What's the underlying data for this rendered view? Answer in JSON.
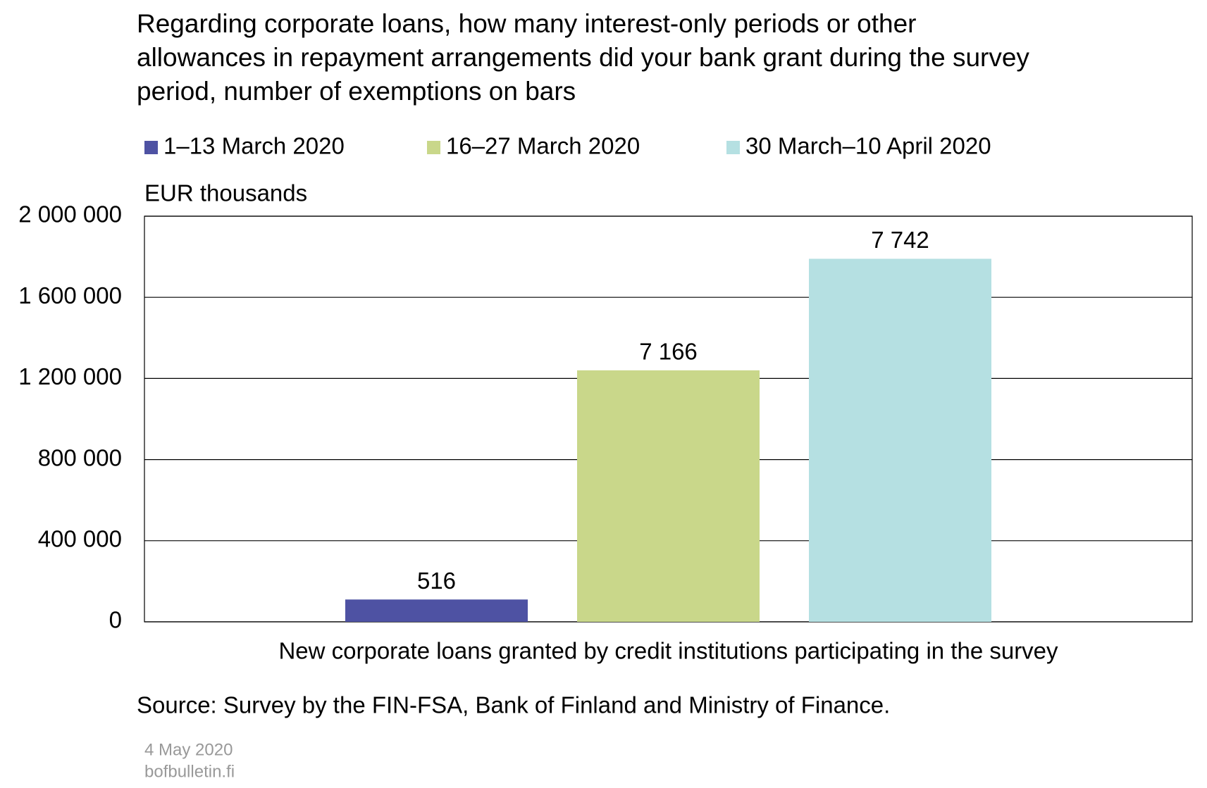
{
  "chart_data": {
    "type": "bar",
    "title": [
      "Regarding corporate loans, how many interest-only periods or other",
      "allowances in repayment arrangements did your bank grant during the survey",
      "period, number of exemptions on bars"
    ],
    "y_unit": "EUR thousands",
    "categories": [
      "New corporate loans granted by credit institutions participating in the survey"
    ],
    "series": [
      {
        "name": "1–13 March 2020",
        "color": "#4e52a3",
        "values": [
          110000
        ],
        "bar_label": "516"
      },
      {
        "name": "16–27 March 2020",
        "color": "#c9d78a",
        "values": [
          1240000
        ],
        "bar_label": "7 166"
      },
      {
        "name": "30 March–10 April 2020",
        "color": "#b5e0e2",
        "values": [
          1790000
        ],
        "bar_label": "7 742"
      }
    ],
    "ylim": [
      0,
      2000000
    ],
    "yticks": [
      0,
      {
        "value": 400000,
        "label": "400 000"
      },
      {
        "value": 800000,
        "label": "800 000"
      },
      {
        "value": 1200000,
        "label": "1 200 000"
      },
      {
        "value": 1600000,
        "label": "1 600 000"
      },
      {
        "value": 2000000,
        "label": "2 000 000"
      }
    ],
    "grid": true,
    "source": "Source: Survey by the FIN-FSA, Bank of Finland and Ministry of Finance.",
    "footer": [
      "4 May 2020",
      "bofbulletin.fi"
    ]
  }
}
